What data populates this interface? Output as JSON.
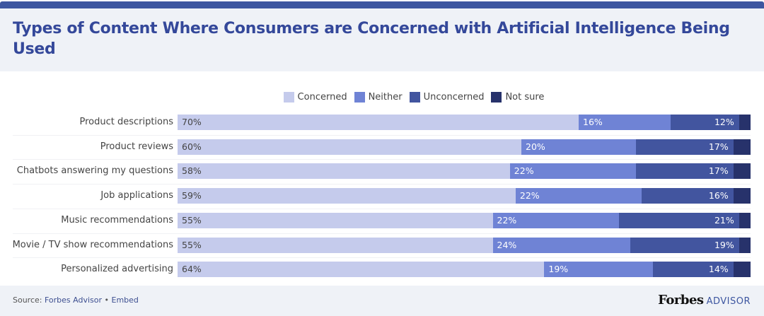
{
  "chart_data": {
    "type": "bar",
    "orientation": "horizontal",
    "stacked": true,
    "title": "Types of Content Where Consumers are Concerned with Artificial Intelligence Being Used",
    "legend_position": "top",
    "xlim": [
      0,
      100
    ],
    "categories": [
      "Product descriptions",
      "Product reviews",
      "Chatbots answering my questions",
      "Job applications",
      "Music recommendations",
      "Movie / TV show recommendations",
      "Personalized advertising"
    ],
    "series": [
      {
        "name": "Concerned",
        "color": "#c5cbec",
        "label_color": "#444444",
        "values": [
          70,
          60,
          58,
          59,
          55,
          55,
          64
        ]
      },
      {
        "name": "Neither",
        "color": "#6f83d5",
        "label_color": "#ffffff",
        "values": [
          16,
          20,
          22,
          22,
          22,
          24,
          19
        ]
      },
      {
        "name": "Unconcerned",
        "color": "#42559f",
        "label_color": "#ffffff",
        "values": [
          12,
          17,
          17,
          16,
          21,
          19,
          14
        ]
      },
      {
        "name": "Not sure",
        "color": "#27326b",
        "label_color": "#ffffff",
        "values": [
          2,
          3,
          3,
          3,
          2,
          2,
          3
        ]
      }
    ],
    "labeled_series": [
      "Concerned",
      "Neither",
      "Unconcerned"
    ]
  },
  "footer": {
    "source_label": "Source: ",
    "source_link": "Forbes Advisor",
    "separator": " • ",
    "embed_link": "Embed",
    "brand": "Forbes",
    "brand_suffix": "ADVISOR"
  }
}
